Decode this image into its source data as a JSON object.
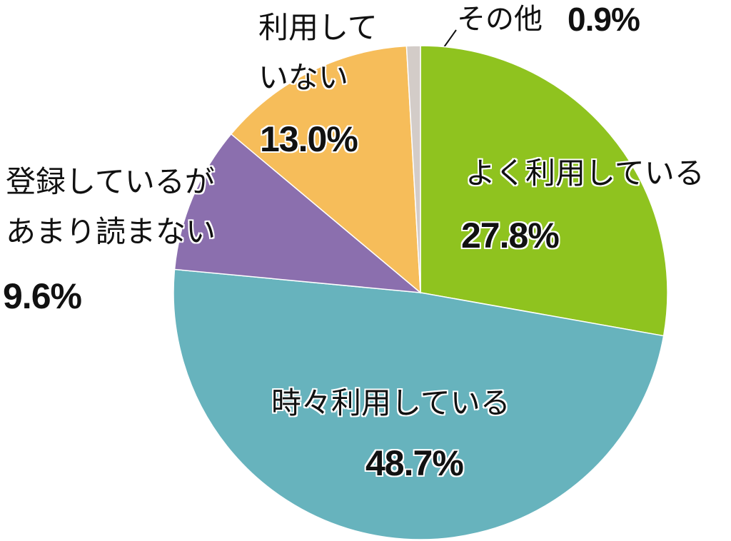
{
  "chart_data": {
    "type": "pie",
    "categories": [
      "よく利用している",
      "時々利用している",
      "登録しているがあまり読まない",
      "利用していない",
      "その他"
    ],
    "values": [
      27.8,
      48.7,
      9.6,
      13.0,
      0.9
    ],
    "value_labels": [
      "27.8%",
      "48.7%",
      "9.6%",
      "13.0%",
      "0.9%"
    ],
    "colors": [
      "#8fc31f",
      "#67b3bd",
      "#8b6fae",
      "#f6bd5a",
      "#d3ccc8"
    ]
  }
}
